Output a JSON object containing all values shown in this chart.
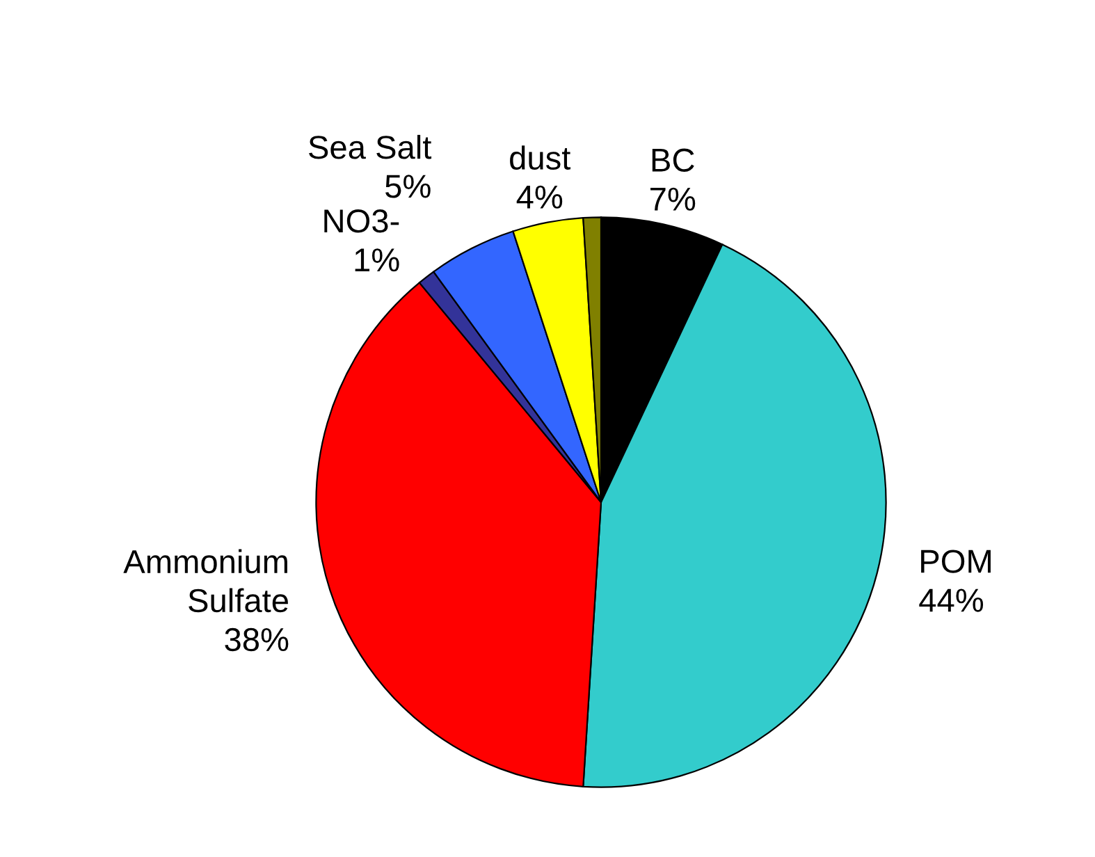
{
  "chart_data": {
    "type": "pie",
    "categories": [
      "BC",
      "POM",
      "Ammonium Sulfate",
      "NO3-",
      "Sea Salt",
      "dust",
      null
    ],
    "values": [
      7,
      44,
      38,
      1,
      5,
      4,
      1
    ],
    "value_labels": [
      "7%",
      "44%",
      "38%",
      "1%",
      "5%",
      "4%",
      null
    ],
    "colors": [
      "#000000",
      "#33cccc",
      "#ff0000",
      "#333399",
      "#3366ff",
      "#ffff00",
      "#808000"
    ]
  }
}
